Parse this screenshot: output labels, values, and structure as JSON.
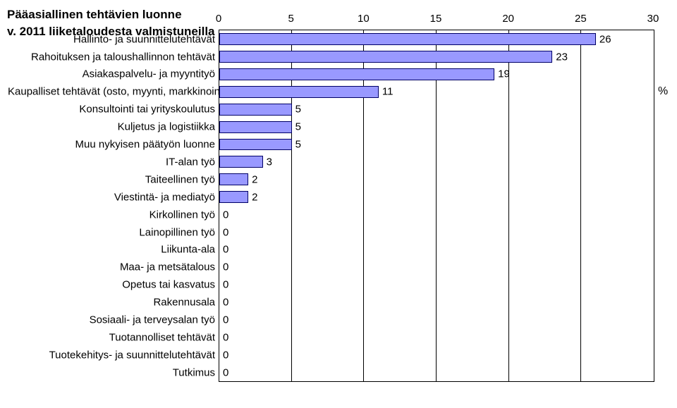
{
  "title_line1": "Pääasiallinen tehtävien luonne",
  "title_line2": "v. 2011 liiketaloudesta valmistuneilla",
  "chart": {
    "type": "bar-horizontal",
    "xlim": [
      0,
      30
    ],
    "xticks": [
      0,
      5,
      10,
      15,
      20,
      25,
      30
    ],
    "tick_labels": [
      "0",
      "5",
      "10",
      "15",
      "20",
      "25",
      "30"
    ],
    "bar_fill": "#9999ff",
    "bar_border": "#000066",
    "background": "#ffffff",
    "grid_color": "#000000",
    "font_size_axis": 15,
    "font_size_cat": 15,
    "ylabel": "%",
    "categories": [
      {
        "label": "Hallinto- ja suunnittelutehtävät",
        "value": 26
      },
      {
        "label": "Rahoituksen ja taloushallinnon tehtävät",
        "value": 23
      },
      {
        "label": "Asiakaspalvelu- ja myyntityö",
        "value": 19
      },
      {
        "label": "Kaupalliset tehtävät (osto, myynti, markkinointi tms.)",
        "value": 11
      },
      {
        "label": "Konsultointi tai yrityskoulutus",
        "value": 5
      },
      {
        "label": "Kuljetus ja logistiikka",
        "value": 5
      },
      {
        "label": "Muu nykyisen päätyön luonne",
        "value": 5
      },
      {
        "label": "IT-alan työ",
        "value": 3
      },
      {
        "label": "Taiteellinen työ",
        "value": 2
      },
      {
        "label": "Viestintä- ja mediatyö",
        "value": 2
      },
      {
        "label": "Kirkollinen työ",
        "value": 0
      },
      {
        "label": "Lainopillinen työ",
        "value": 0
      },
      {
        "label": "Liikunta-ala",
        "value": 0
      },
      {
        "label": "Maa- ja metsätalous",
        "value": 0
      },
      {
        "label": "Opetus tai kasvatus",
        "value": 0
      },
      {
        "label": "Rakennusala",
        "value": 0
      },
      {
        "label": "Sosiaali- ja terveysalan työ",
        "value": 0
      },
      {
        "label": "Tuotannolliset tehtävät",
        "value": 0
      },
      {
        "label": "Tuotekehitys- ja suunnittelutehtävät",
        "value": 0
      },
      {
        "label": "Tutkimus",
        "value": 0
      }
    ]
  }
}
